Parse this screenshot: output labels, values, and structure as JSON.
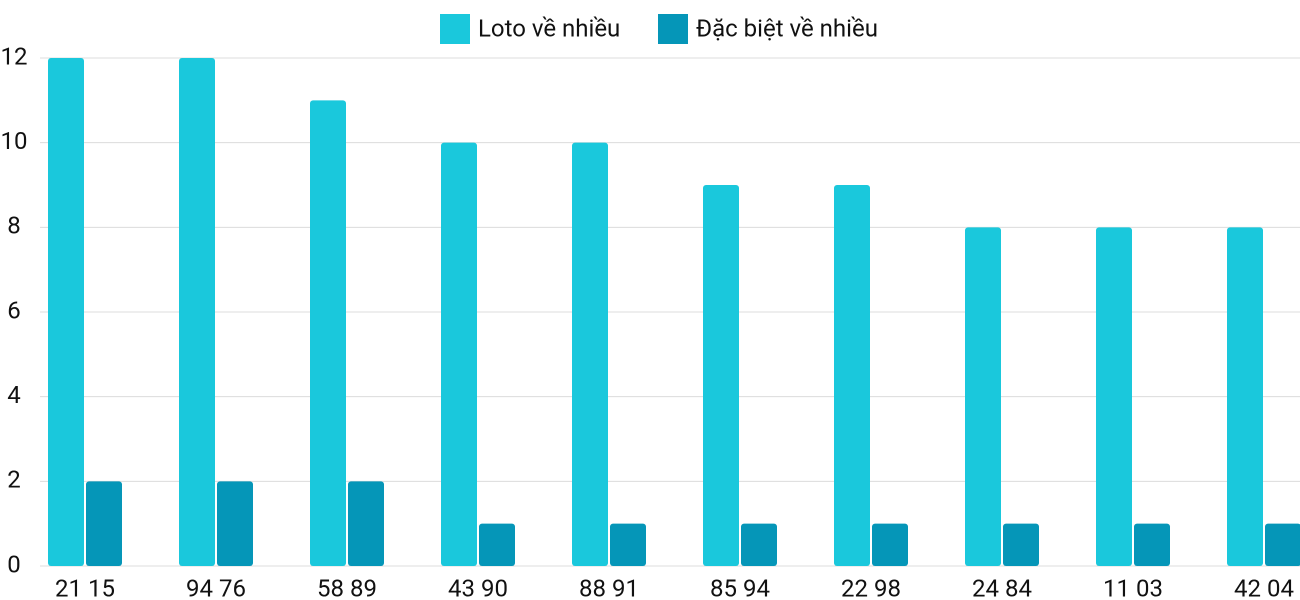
{
  "chart_data": {
    "type": "bar",
    "categories": [
      "21 15",
      "94 76",
      "58 89",
      "43 90",
      "88 91",
      "85 94",
      "22 98",
      "24 84",
      "11 03",
      "42 04"
    ],
    "series": [
      {
        "name": "Loto về nhiều",
        "color": "#1ac8dc",
        "values": [
          12,
          12,
          11,
          10,
          10,
          9,
          9,
          8,
          8,
          8
        ]
      },
      {
        "name": "Đặc biệt về nhiều",
        "color": "#0596b8",
        "values": [
          2,
          2,
          2,
          1,
          1,
          1,
          1,
          1,
          1,
          1
        ]
      }
    ],
    "ylim": [
      0,
      12
    ],
    "yticks": [
      0,
      2,
      4,
      6,
      8,
      10,
      12
    ],
    "grid": true,
    "legend": "top"
  }
}
